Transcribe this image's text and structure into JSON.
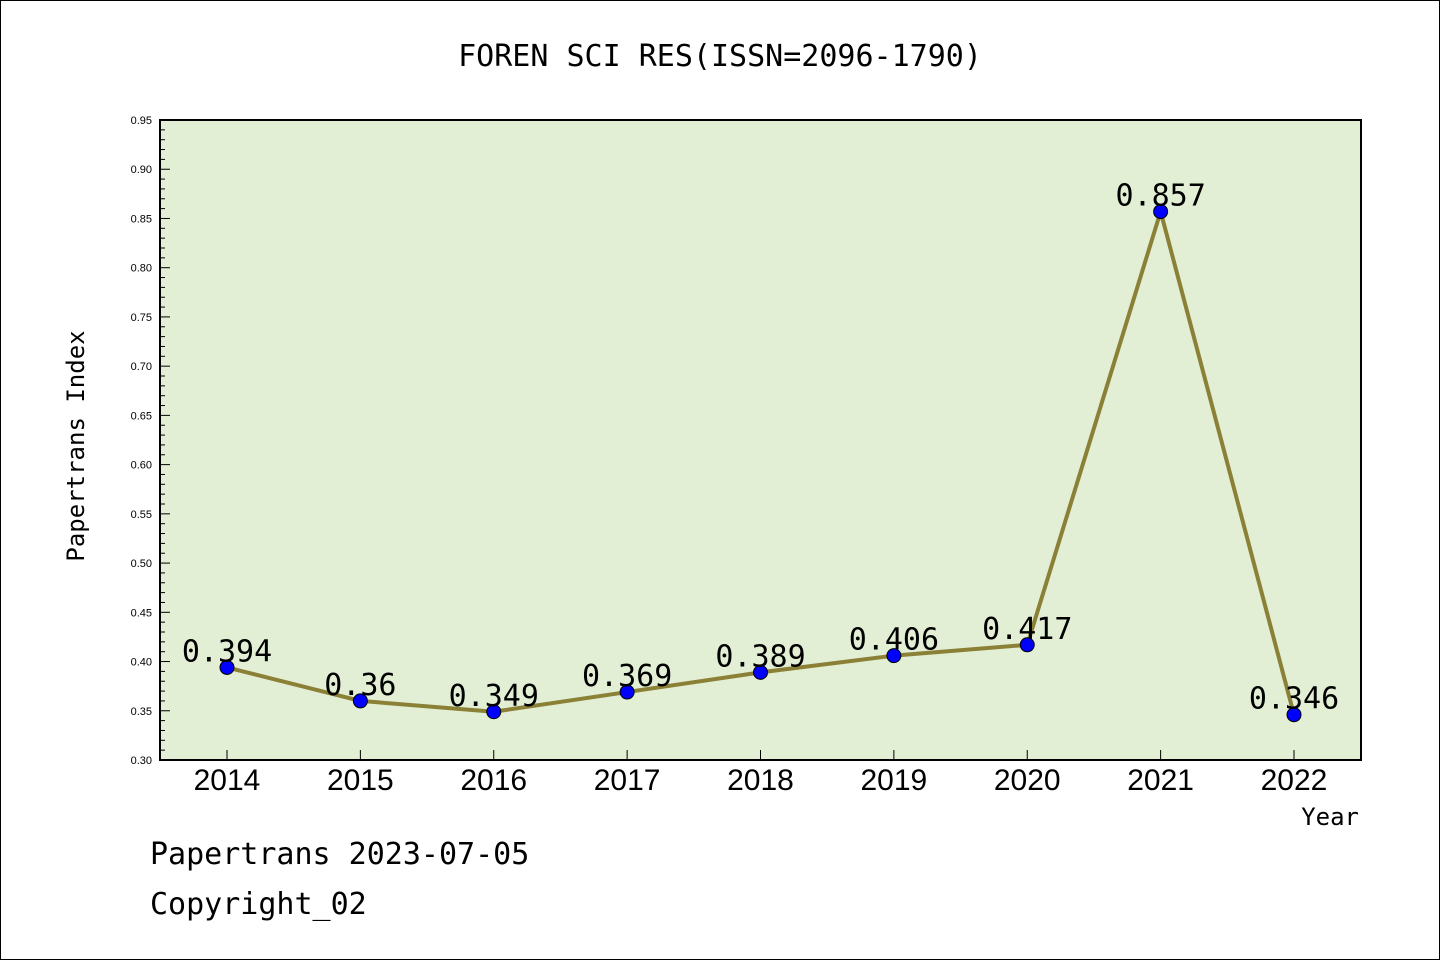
{
  "chart_data": {
    "type": "line",
    "title": "FOREN SCI RES(ISSN=2096-1790)",
    "xlabel": "Year",
    "ylabel": "Papertrans Index",
    "categories": [
      "2014",
      "2015",
      "2016",
      "2017",
      "2018",
      "2019",
      "2020",
      "2021",
      "2022"
    ],
    "series": [
      {
        "values": [
          0.394,
          0.36,
          0.349,
          0.369,
          0.389,
          0.406,
          0.417,
          0.857,
          0.346
        ],
        "data_labels": [
          "0.394",
          "0.36",
          "0.349",
          "0.369",
          "0.389",
          "0.406",
          "0.417",
          "0.857",
          "0.346"
        ]
      }
    ],
    "ylim": [
      0.3,
      0.95
    ],
    "yticks": [
      "0.30",
      "0.35",
      "0.40",
      "0.45",
      "0.50",
      "0.55",
      "0.60",
      "0.65",
      "0.70",
      "0.75",
      "0.80",
      "0.85",
      "0.90",
      "0.95"
    ],
    "grid": false,
    "colors": {
      "plot_background": "#e2efd5",
      "line": "#8b8136",
      "marker": "#0000ff"
    }
  },
  "footer": {
    "line1": "Papertrans 2023-07-05",
    "line2": "Copyright_02"
  }
}
